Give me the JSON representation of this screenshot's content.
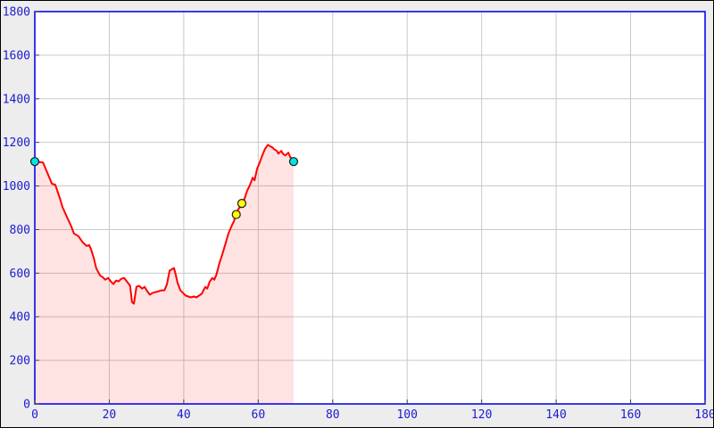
{
  "window": {
    "title": ""
  },
  "chart_data": {
    "type": "area",
    "title": "",
    "subtitle": "",
    "xlabel": "",
    "ylabel": "",
    "xlim": [
      0,
      180
    ],
    "ylim": [
      0,
      1800
    ],
    "x_ticks": [
      0,
      20,
      40,
      60,
      80,
      100,
      120,
      140,
      160,
      180
    ],
    "y_ticks": [
      0,
      200,
      400,
      600,
      800,
      1000,
      1200,
      1400,
      1600,
      1800
    ],
    "grid": true,
    "legend": false,
    "series": [
      {
        "name": "elevation-profile",
        "line_color": "#ff0000",
        "fill_color": "rgba(255,0,0,0.11)",
        "points": [
          [
            0,
            1112
          ],
          [
            2.2,
            1108
          ],
          [
            3.4,
            1059
          ],
          [
            4.6,
            1010
          ],
          [
            5.5,
            1006
          ],
          [
            6.7,
            945
          ],
          [
            7.4,
            904
          ],
          [
            8.4,
            867
          ],
          [
            9.8,
            814
          ],
          [
            10.5,
            782
          ],
          [
            11.7,
            770
          ],
          [
            12.9,
            741
          ],
          [
            13.9,
            725
          ],
          [
            14.6,
            729
          ],
          [
            15.1,
            709
          ],
          [
            15.8,
            672
          ],
          [
            16.5,
            623
          ],
          [
            17.5,
            590
          ],
          [
            18.2,
            582
          ],
          [
            18.9,
            570
          ],
          [
            19.7,
            578
          ],
          [
            20.4,
            562
          ],
          [
            21.1,
            550
          ],
          [
            21.8,
            566
          ],
          [
            22.5,
            562
          ],
          [
            23.2,
            574
          ],
          [
            24,
            578
          ],
          [
            24.9,
            558
          ],
          [
            25.6,
            542
          ],
          [
            26.1,
            468
          ],
          [
            26.6,
            460
          ],
          [
            27.3,
            537
          ],
          [
            28,
            542
          ],
          [
            28.8,
            529
          ],
          [
            29.5,
            537
          ],
          [
            30.2,
            517
          ],
          [
            30.9,
            501
          ],
          [
            31.6,
            509
          ],
          [
            32.4,
            513
          ],
          [
            33.3,
            517
          ],
          [
            34,
            521
          ],
          [
            34.8,
            521
          ],
          [
            35.5,
            550
          ],
          [
            36.2,
            611
          ],
          [
            36.9,
            619
          ],
          [
            37.4,
            623
          ],
          [
            37.9,
            590
          ],
          [
            38.3,
            558
          ],
          [
            39.1,
            521
          ],
          [
            39.8,
            509
          ],
          [
            40.5,
            497
          ],
          [
            41.2,
            493
          ],
          [
            41.9,
            489
          ],
          [
            42.7,
            493
          ],
          [
            43.4,
            489
          ],
          [
            44.1,
            497
          ],
          [
            44.8,
            505
          ],
          [
            45.3,
            521
          ],
          [
            45.8,
            537
          ],
          [
            46.3,
            529
          ],
          [
            47,
            562
          ],
          [
            47.7,
            578
          ],
          [
            48.2,
            570
          ],
          [
            48.7,
            590
          ],
          [
            49.1,
            615
          ],
          [
            49.6,
            647
          ],
          [
            50.1,
            672
          ],
          [
            50.6,
            700
          ],
          [
            51.1,
            729
          ],
          [
            51.5,
            753
          ],
          [
            52,
            782
          ],
          [
            52.5,
            802
          ],
          [
            53,
            822
          ],
          [
            53.5,
            839
          ],
          [
            53.9,
            863
          ],
          [
            54.6,
            892
          ],
          [
            55.1,
            904
          ],
          [
            55.6,
            920
          ],
          [
            56.3,
            941
          ],
          [
            57,
            977
          ],
          [
            57.8,
            1006
          ],
          [
            58.5,
            1038
          ],
          [
            59,
            1026
          ],
          [
            59.7,
            1079
          ],
          [
            60.4,
            1108
          ],
          [
            61.1,
            1140
          ],
          [
            61.8,
            1169
          ],
          [
            62.6,
            1189
          ],
          [
            63.3,
            1181
          ],
          [
            63.8,
            1177
          ],
          [
            64.2,
            1169
          ],
          [
            65,
            1161
          ],
          [
            65.4,
            1148
          ],
          [
            66.2,
            1161
          ],
          [
            66.6,
            1148
          ],
          [
            67.3,
            1140
          ],
          [
            68.1,
            1153
          ],
          [
            68.6,
            1132
          ],
          [
            69,
            1128
          ],
          [
            69.5,
            1112
          ]
        ]
      }
    ],
    "markers": [
      {
        "name": "start-marker",
        "x": 0,
        "y": 1112,
        "fill": "#00e5e5",
        "stroke": "#1a1a1a"
      },
      {
        "name": "waypoint-marker-1",
        "x": 54.1,
        "y": 869,
        "fill": "#ffff00",
        "stroke": "#1a1a1a"
      },
      {
        "name": "waypoint-marker-2",
        "x": 55.6,
        "y": 920,
        "fill": "#ffff00",
        "stroke": "#1a1a1a"
      },
      {
        "name": "end-marker",
        "x": 69.5,
        "y": 1112,
        "fill": "#00e5e5",
        "stroke": "#1a1a1a"
      }
    ],
    "colors": {
      "page_bg": "#ededed",
      "plot_bg": "#ffffff",
      "grid": "#c9c9c9",
      "axis": "#0909f0",
      "tick": "#444444",
      "tick_label": "#1b1bd0"
    }
  }
}
